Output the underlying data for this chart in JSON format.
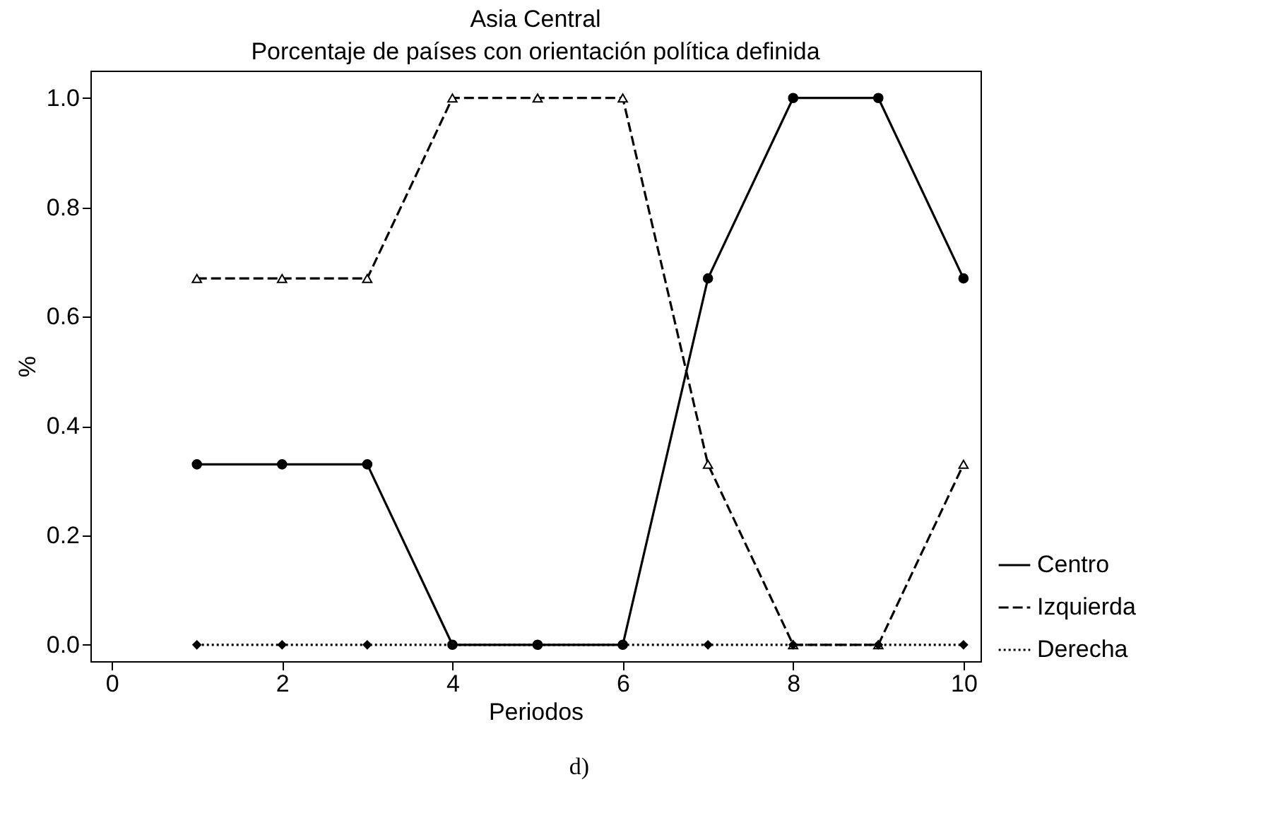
{
  "chart_data": {
    "type": "line",
    "title": "Asia Central",
    "subtitle": "Porcentaje de países con orientación política definida",
    "xlabel": "Periodos",
    "ylabel": "%",
    "x": [
      1,
      2,
      3,
      4,
      5,
      6,
      7,
      8,
      9,
      10
    ],
    "series": [
      {
        "name": "Centro",
        "color": "#000000",
        "marker": "circle",
        "line_style": "solid",
        "values": [
          0.33,
          0.33,
          0.33,
          0,
          0,
          0,
          0.67,
          1,
          1,
          0.67
        ]
      },
      {
        "name": "Izquierda",
        "color": "#000000",
        "marker": "triangle",
        "line_style": "dashed",
        "values": [
          0.67,
          0.67,
          0.67,
          1,
          1,
          1,
          0.33,
          0,
          0,
          0.33
        ]
      },
      {
        "name": "Derecha",
        "color": "#000000",
        "marker": "diamond",
        "line_style": "dotted",
        "values": [
          0,
          0,
          0,
          0,
          0,
          0,
          0,
          0,
          0,
          0
        ]
      }
    ],
    "xlim": [
      -0.25,
      10.2
    ],
    "xticks": [
      0,
      2,
      4,
      6,
      8,
      10
    ],
    "ylim": [
      -0.03,
      1.05
    ],
    "yticks": [
      {
        "value": 0,
        "label": "0.0"
      },
      {
        "value": 0.2,
        "label": "0.2"
      },
      {
        "value": 0.4,
        "label": "0.4"
      },
      {
        "value": 0.6,
        "label": "0.6"
      },
      {
        "value": 0.8,
        "label": "0.8"
      },
      {
        "value": 1,
        "label": "1.0"
      }
    ],
    "grid": false,
    "legend": "bottom right",
    "annotations": [
      "d)"
    ]
  }
}
